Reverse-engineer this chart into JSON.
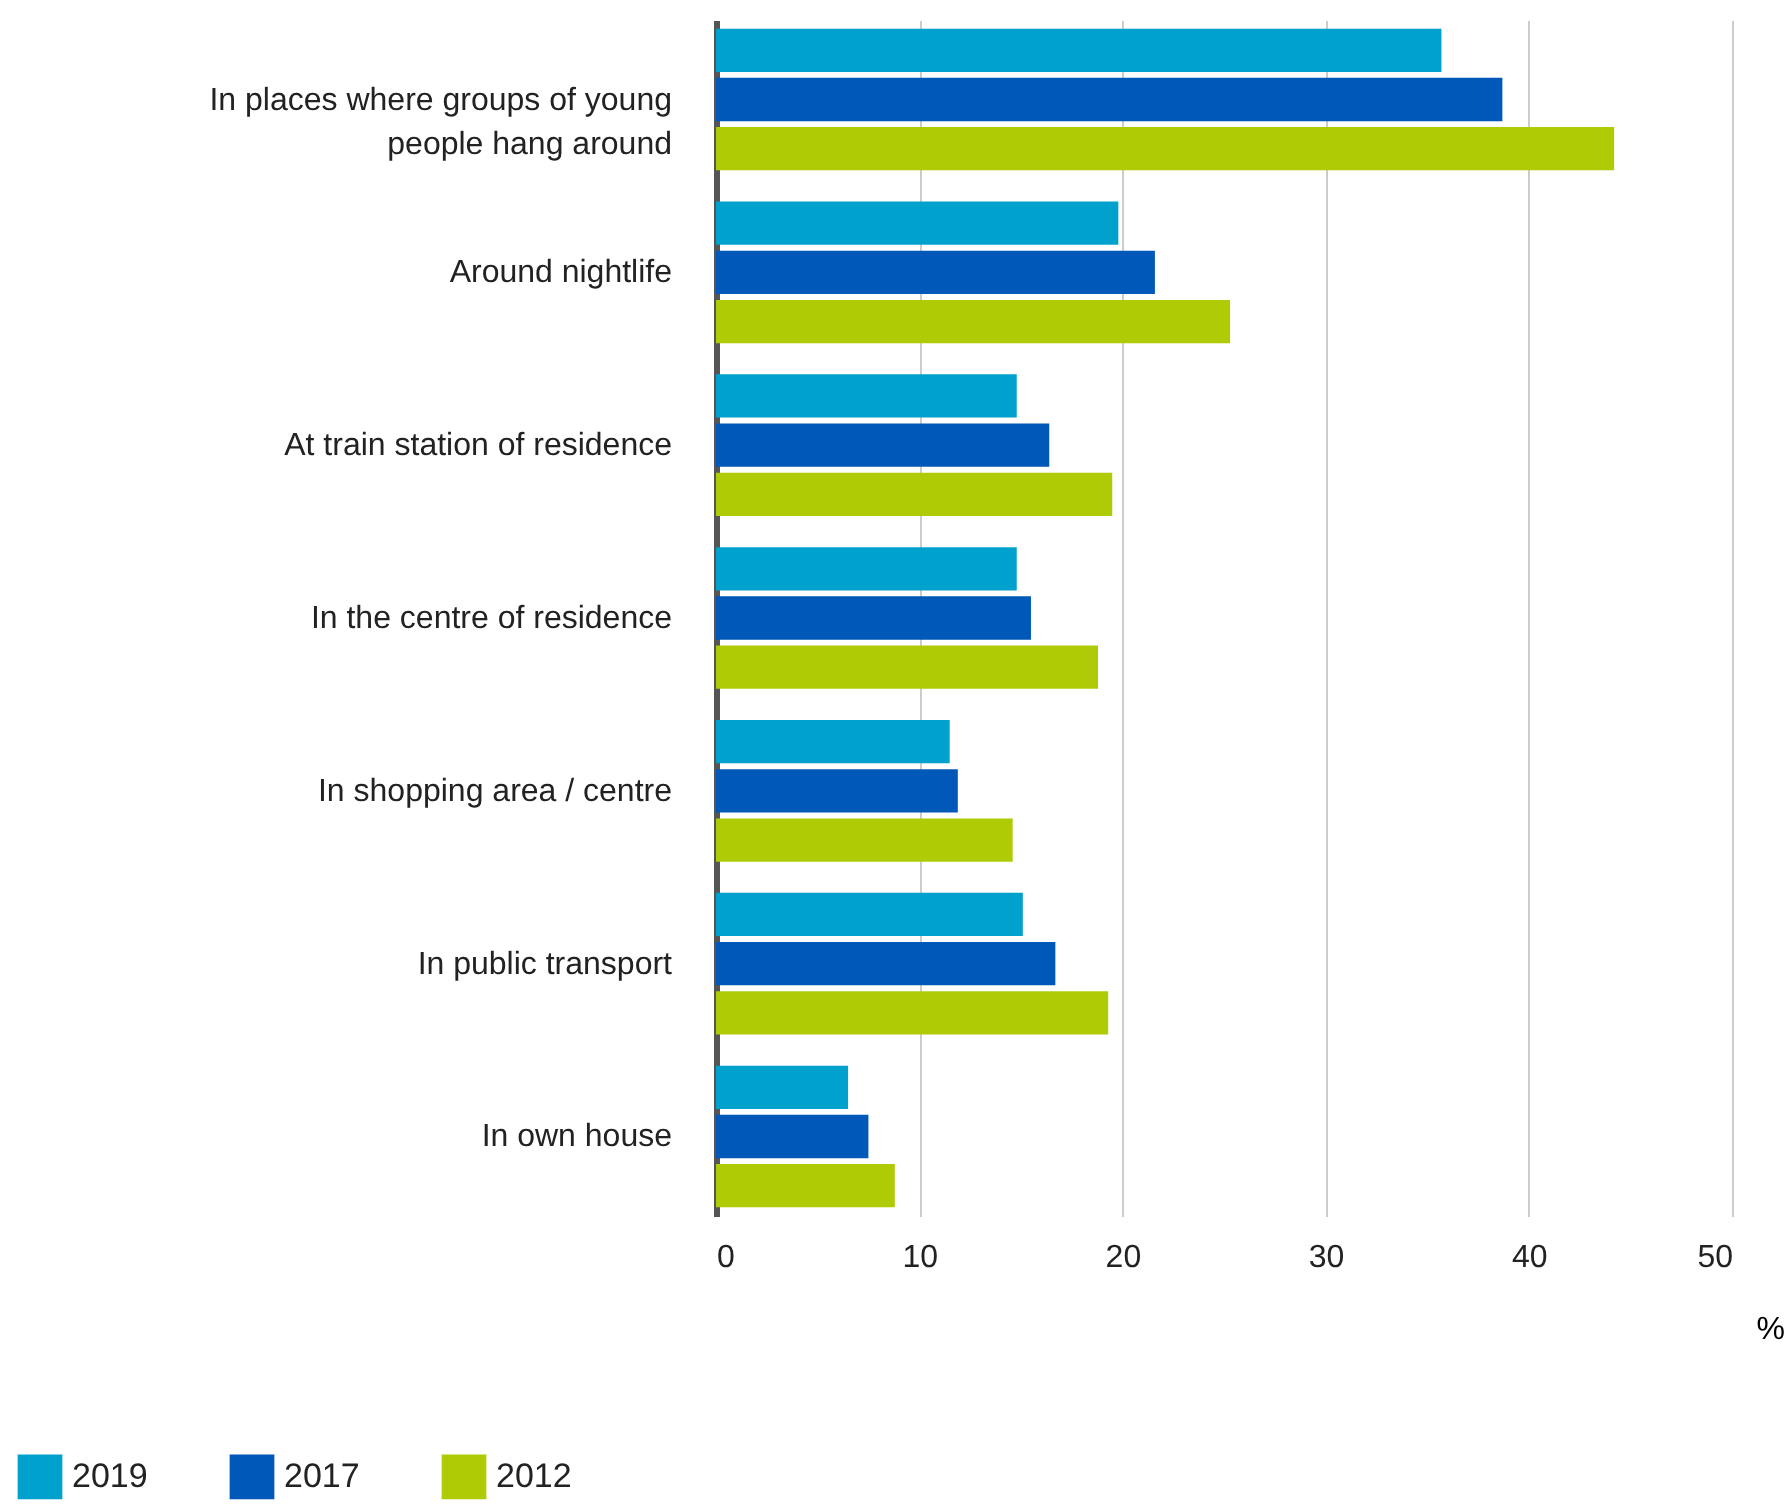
{
  "chart_data": {
    "type": "bar",
    "orientation": "horizontal",
    "categories": [
      "In places where groups of young people hang around",
      "Around nightlife",
      "At train station of residence",
      "In the centre of residence",
      "In shopping area / centre",
      "In public transport",
      "In own house"
    ],
    "series": [
      {
        "name": "2019",
        "color": "#00a1cd",
        "values": [
          35.7,
          19.8,
          14.8,
          14.8,
          11.5,
          15.1,
          6.5
        ]
      },
      {
        "name": "2017",
        "color": "#0058b8",
        "values": [
          38.7,
          21.6,
          16.4,
          15.5,
          11.9,
          16.7,
          7.5
        ]
      },
      {
        "name": "2012",
        "color": "#afcb05",
        "values": [
          44.2,
          25.3,
          19.5,
          18.8,
          14.6,
          19.3,
          8.8
        ]
      }
    ],
    "xlabel": "%",
    "xlim": [
      0,
      50
    ],
    "xticks": [
      0,
      10,
      20,
      30,
      40,
      50
    ],
    "grid": "x",
    "legend": "bottom left"
  }
}
